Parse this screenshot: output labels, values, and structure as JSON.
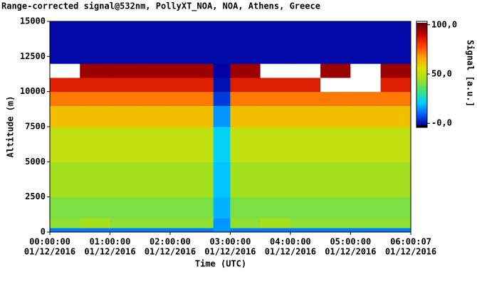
{
  "chart_data": {
    "type": "heatmap",
    "title": "Range-corrected signal@532nm, PollyXT_NOA, NOA, Athens, Greece",
    "x_label": "Time (UTC)",
    "y_label": "Altitude (m)",
    "colorbar_label": "Signal [a.u.]",
    "x_edges": [
      0,
      0.5,
      1,
      1.5,
      2,
      2.5,
      2.72,
      3,
      3.5,
      4,
      4.5,
      5,
      5.5,
      6.00194
    ],
    "y_edges": [
      0,
      300,
      1000,
      2500,
      5000,
      7500,
      9000,
      10000,
      11000,
      12000,
      13000,
      15000
    ],
    "z": [
      [
        12,
        12,
        12,
        12,
        12,
        12,
        15,
        12,
        12,
        12,
        12,
        12,
        12
      ],
      [
        42,
        45,
        42,
        42,
        42,
        42,
        15,
        42,
        45,
        42,
        42,
        42,
        42
      ],
      [
        40,
        40,
        40,
        40,
        40,
        40,
        18,
        40,
        40,
        40,
        40,
        40,
        40
      ],
      [
        45,
        45,
        45,
        45,
        45,
        45,
        20,
        45,
        45,
        45,
        45,
        45,
        45
      ],
      [
        50,
        50,
        50,
        50,
        50,
        50,
        22,
        50,
        50,
        50,
        50,
        50,
        50
      ],
      [
        62,
        62,
        62,
        62,
        62,
        62,
        15,
        62,
        62,
        62,
        62,
        62,
        62
      ],
      [
        72,
        72,
        72,
        72,
        72,
        72,
        5,
        72,
        72,
        72,
        72,
        72,
        72
      ],
      [
        85,
        85,
        85,
        85,
        85,
        85,
        0,
        85,
        85,
        85,
        120,
        120,
        85
      ],
      [
        120,
        95,
        95,
        95,
        95,
        95,
        -2,
        95,
        120,
        120,
        95,
        120,
        95
      ],
      [
        -1,
        -1,
        -1,
        -1,
        -1,
        -1,
        -1,
        -1,
        -1,
        -1,
        -1,
        -1,
        -1
      ],
      [
        -1,
        -1,
        -1,
        -1,
        -1,
        -1,
        -1,
        -1,
        -1,
        -1,
        -1,
        -1,
        -1
      ]
    ],
    "xlim": [
      0,
      6.00194
    ],
    "xticks": [
      {
        "value": 0,
        "label": "00:00:00",
        "date": "01/12/2016"
      },
      {
        "value": 1,
        "label": "01:00:00",
        "date": "01/12/2016"
      },
      {
        "value": 2,
        "label": "02:00:00",
        "date": "01/12/2016"
      },
      {
        "value": 3,
        "label": "03:00:00",
        "date": "01/12/2016"
      },
      {
        "value": 4,
        "label": "04:00:00",
        "date": "01/12/2016"
      },
      {
        "value": 5,
        "label": "05:00:00",
        "date": "01/12/2016"
      },
      {
        "value": 6.00194,
        "label": "06:00:07",
        "date": "01/12/2016"
      }
    ],
    "ylim": [
      0,
      15000
    ],
    "yticks": [
      0,
      2500,
      5000,
      7500,
      10000,
      12500,
      15000
    ],
    "clim": [
      -2,
      102
    ],
    "cticks": [
      {
        "value": 0,
        "label": "-0,0"
      },
      {
        "value": 50,
        "label": "50,0"
      },
      {
        "value": 100,
        "label": "100,0"
      }
    ],
    "colormap": [
      "#0000a0",
      "#0060ff",
      "#00d0ff",
      "#40e080",
      "#a0e020",
      "#e0e000",
      "#ffa000",
      "#ff4000",
      "#c00000",
      "#600000"
    ],
    "under_color": "#000000",
    "over_color": "#ffffff"
  }
}
